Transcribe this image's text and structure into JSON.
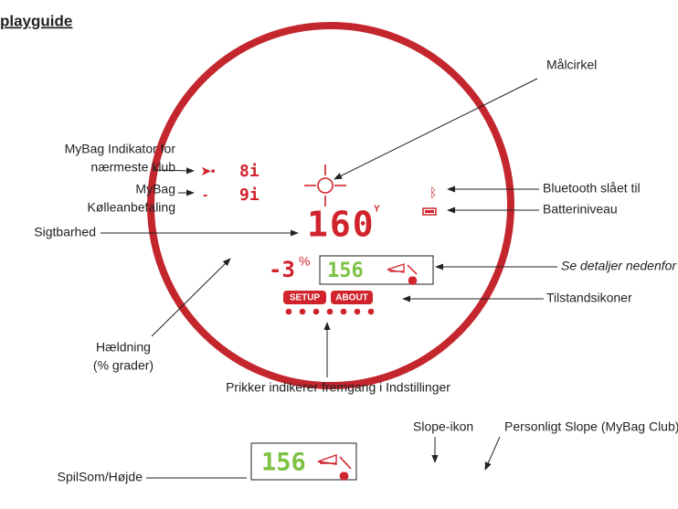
{
  "header": {
    "title": "playguide"
  },
  "display": {
    "club_indicator": "8i",
    "club_recommendation": "9i",
    "distance": "160",
    "distance_unit": "Y",
    "slope": "-3",
    "slope_unit": "%",
    "playslike": "156",
    "mode_icons": [
      "SETUP",
      "ABOUT"
    ]
  },
  "labels": {
    "target_circle": "Målcirkel",
    "mybag_indicator": [
      "MyBag Indikator for",
      "nærmeste klub"
    ],
    "mybag_recommendation": [
      "MyBag",
      "Kølleanbefaling"
    ],
    "visibility": "Sigtbarhed",
    "bluetooth": "Bluetooth slået til",
    "battery": "Batteriniveau",
    "see_details": "Se detaljer nedenfor",
    "status_icons": "Tilstandsikoner",
    "slope": [
      "Hældning",
      "(% grader)"
    ],
    "dots": "Prikker indikerer fremgang i Indstillinger"
  },
  "detail": {
    "playslike": "156",
    "slope_icon": "Slope-ikon",
    "personal_slope_icon": "Personligt Slope (MyBag Club) ikon",
    "playslike_label": "SpilSom/Højde"
  }
}
